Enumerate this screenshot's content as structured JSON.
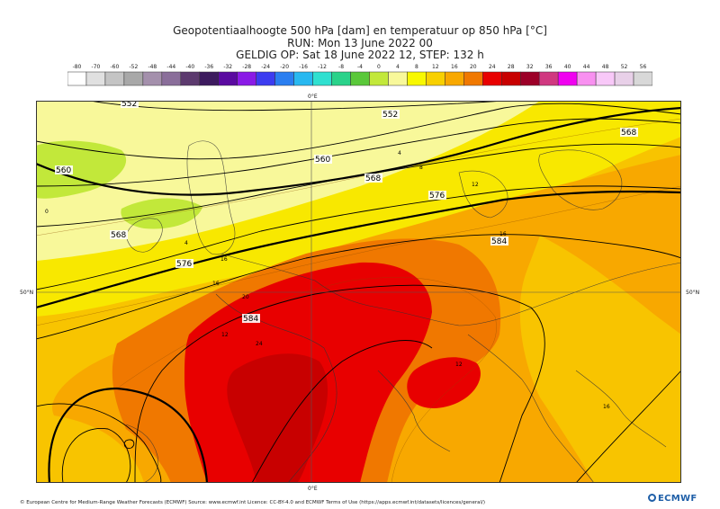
{
  "title_line1": "Geopotentiaalhoogte 500 hPa [dam] en temperatuur op 850 hPa [°C]",
  "title_line2": "RUN: Mon 13 June 2022 00",
  "title_line3": "GELDIG OP: Sat 18 June 2022 12, STEP: 132 h",
  "colorbar": {
    "ticks": [
      "-80",
      "-70",
      "-60",
      "-52",
      "-48",
      "-44",
      "-40",
      "-36",
      "-32",
      "-28",
      "-24",
      "-20",
      "-16",
      "-12",
      "-8",
      "-4",
      "0",
      "4",
      "8",
      "12",
      "16",
      "20",
      "24",
      "28",
      "32",
      "36",
      "40",
      "44",
      "48",
      "52",
      "56"
    ],
    "colors": [
      "#ffffff",
      "#e0e0e0",
      "#c4c4c4",
      "#a8a8a8",
      "#a490ac",
      "#8a6e9a",
      "#5c3a6e",
      "#3c1a5e",
      "#5a0aa0",
      "#8a1ae6",
      "#3c3cf0",
      "#2a7ef0",
      "#28b8f0",
      "#30e0d0",
      "#2ad28a",
      "#5ac83a",
      "#c2e83a",
      "#f8f89a",
      "#f8f800",
      "#f8d000",
      "#f8a800",
      "#f07800",
      "#e80000",
      "#c80000",
      "#9c0028",
      "#d03880",
      "#f000f0",
      "#f890f0",
      "#f8c8f8",
      "#e8d0e8",
      "#d8d8d8"
    ]
  },
  "coords": {
    "top_meridian": "0°E",
    "bottom_meridian": "0°E",
    "left_parallel": "50°N",
    "right_parallel": "50°N"
  },
  "contour_labels": [
    "552",
    "552",
    "560",
    "560",
    "568",
    "568",
    "568",
    "576",
    "576",
    "584",
    "584"
  ],
  "isotherm_labels": [
    "4",
    "8",
    "12",
    "16",
    "16",
    "20",
    "24",
    "16",
    "0",
    "12",
    "16",
    "12",
    "4"
  ],
  "footer": "© European Centre for Medium-Range Weather Forecasts (ECMWF) Source: www.ecmwf.int Licence: CC-BY-4.0 and ECMWF Terms of Use (https://apps.ecmwf.int/datasets/licences/general/)",
  "logo": "ECMWF"
}
